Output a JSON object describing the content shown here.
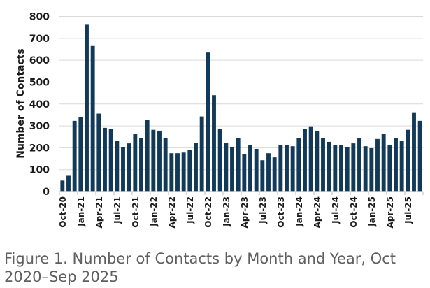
{
  "caption": "Figure 1. Number of Contacts by Month and Year, Oct 2020–Sep 2025",
  "chart_data": {
    "type": "bar",
    "title": "Figure 1. Number of Contacts by Month and Year, Oct 2020–Sep 2025",
    "xlabel": "",
    "ylabel": "Number of Contacts",
    "ylim": [
      0,
      800
    ],
    "yticks": [
      0,
      100,
      200,
      300,
      400,
      500,
      600,
      700,
      800
    ],
    "grid": true,
    "legend": "none",
    "bar_color": "#123a58",
    "tick_labels_shown": [
      "Oct-20",
      "Jan-21",
      "Apr-21",
      "Jul-21",
      "Oct-21",
      "Jan-22",
      "Apr-22",
      "Jul-22",
      "Oct-22",
      "Jan-23",
      "Apr-23",
      "Jul-23",
      "Oct-23",
      "Jan-24",
      "Apr-24",
      "Jul-24",
      "Oct-24",
      "Jan-25",
      "Apr-25",
      "Jul-25"
    ],
    "categories": [
      "Oct-20",
      "Nov-20",
      "Dec-20",
      "Jan-21",
      "Feb-21",
      "Mar-21",
      "Apr-21",
      "May-21",
      "Jun-21",
      "Jul-21",
      "Aug-21",
      "Sep-21",
      "Oct-21",
      "Nov-21",
      "Dec-21",
      "Jan-22",
      "Feb-22",
      "Mar-22",
      "Apr-22",
      "May-22",
      "Jun-22",
      "Jul-22",
      "Aug-22",
      "Sep-22",
      "Oct-22",
      "Nov-22",
      "Dec-22",
      "Jan-23",
      "Feb-23",
      "Mar-23",
      "Apr-23",
      "May-23",
      "Jun-23",
      "Jul-23",
      "Aug-23",
      "Sep-23",
      "Oct-23",
      "Nov-23",
      "Dec-23",
      "Jan-24",
      "Feb-24",
      "Mar-24",
      "Apr-24",
      "May-24",
      "Jun-24",
      "Jul-24",
      "Aug-24",
      "Sep-24",
      "Oct-24",
      "Nov-24",
      "Dec-24",
      "Jan-25",
      "Feb-25",
      "Mar-25",
      "Apr-25",
      "May-25",
      "Jun-25",
      "Jul-25",
      "Aug-25",
      "Sep-25"
    ],
    "values": [
      50,
      72,
      323,
      340,
      762,
      665,
      356,
      291,
      285,
      230,
      204,
      220,
      265,
      243,
      327,
      282,
      278,
      246,
      175,
      175,
      178,
      191,
      223,
      343,
      635,
      440,
      285,
      223,
      204,
      243,
      172,
      211,
      195,
      143,
      175,
      156,
      214,
      211,
      207,
      243,
      285,
      298,
      278,
      243,
      227,
      214,
      211,
      204,
      220,
      243,
      207,
      198,
      240,
      262,
      214,
      243,
      233,
      282,
      362,
      323
    ]
  }
}
